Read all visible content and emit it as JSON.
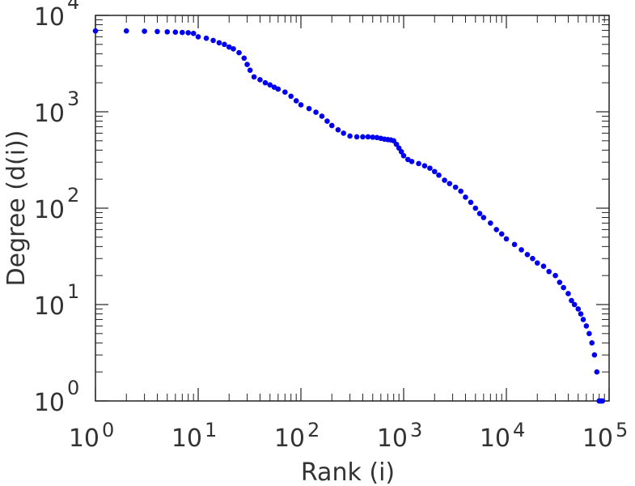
{
  "chart_data": {
    "type": "scatter",
    "xlabel": "Rank (i)",
    "ylabel": "Degree (d(i))",
    "xscale": "log",
    "yscale": "log",
    "xlim": [
      1,
      100000
    ],
    "ylim": [
      1,
      10000
    ],
    "grid": false,
    "marker_color": "#0000ee",
    "x_ticks": [
      {
        "base": "10",
        "exp": "0"
      },
      {
        "base": "10",
        "exp": "1"
      },
      {
        "base": "10",
        "exp": "2"
      },
      {
        "base": "10",
        "exp": "3"
      },
      {
        "base": "10",
        "exp": "4"
      },
      {
        "base": "10",
        "exp": "5"
      }
    ],
    "y_ticks": [
      {
        "base": "10",
        "exp": "0"
      },
      {
        "base": "10",
        "exp": "1"
      },
      {
        "base": "10",
        "exp": "2"
      },
      {
        "base": "10",
        "exp": "3"
      },
      {
        "base": "10",
        "exp": "4"
      }
    ],
    "series": [
      {
        "points": [
          [
            1,
            6900
          ],
          [
            2,
            6900
          ],
          [
            3,
            6850
          ],
          [
            4,
            6800
          ],
          [
            5,
            6750
          ],
          [
            6,
            6700
          ],
          [
            7,
            6650
          ],
          [
            8,
            6600
          ],
          [
            9,
            6500
          ],
          [
            10,
            6000
          ],
          [
            12,
            5800
          ],
          [
            14,
            5500
          ],
          [
            16,
            5200
          ],
          [
            18,
            5000
          ],
          [
            20,
            4700
          ],
          [
            22,
            4500
          ],
          [
            25,
            4100
          ],
          [
            28,
            3600
          ],
          [
            30,
            3100
          ],
          [
            32,
            2700
          ],
          [
            35,
            2300
          ],
          [
            40,
            2150
          ],
          [
            45,
            2000
          ],
          [
            50,
            1900
          ],
          [
            55,
            1800
          ],
          [
            60,
            1720
          ],
          [
            70,
            1600
          ],
          [
            80,
            1450
          ],
          [
            90,
            1300
          ],
          [
            100,
            1180
          ],
          [
            120,
            1080
          ],
          [
            140,
            990
          ],
          [
            160,
            900
          ],
          [
            180,
            800
          ],
          [
            200,
            720
          ],
          [
            230,
            650
          ],
          [
            260,
            600
          ],
          [
            300,
            560
          ],
          [
            350,
            550
          ],
          [
            400,
            550
          ],
          [
            450,
            550
          ],
          [
            500,
            545
          ],
          [
            550,
            540
          ],
          [
            600,
            530
          ],
          [
            650,
            520
          ],
          [
            700,
            515
          ],
          [
            750,
            510
          ],
          [
            800,
            500
          ],
          [
            850,
            460
          ],
          [
            900,
            420
          ],
          [
            950,
            385
          ],
          [
            1000,
            350
          ],
          [
            1100,
            320
          ],
          [
            1200,
            305
          ],
          [
            1400,
            290
          ],
          [
            1600,
            275
          ],
          [
            1800,
            260
          ],
          [
            2000,
            240
          ],
          [
            2200,
            220
          ],
          [
            2500,
            195
          ],
          [
            2800,
            180
          ],
          [
            3200,
            165
          ],
          [
            3600,
            150
          ],
          [
            4000,
            130
          ],
          [
            4500,
            115
          ],
          [
            5000,
            100
          ],
          [
            5500,
            88
          ],
          [
            6000,
            80
          ],
          [
            7000,
            70
          ],
          [
            8000,
            60
          ],
          [
            9000,
            54
          ],
          [
            10000,
            48
          ],
          [
            12000,
            42
          ],
          [
            14000,
            37
          ],
          [
            16000,
            33
          ],
          [
            18000,
            30
          ],
          [
            20000,
            27
          ],
          [
            23000,
            25
          ],
          [
            26000,
            22
          ],
          [
            30000,
            20
          ],
          [
            33000,
            17
          ],
          [
            36000,
            15
          ],
          [
            40000,
            13
          ],
          [
            43000,
            11
          ],
          [
            46000,
            10
          ],
          [
            50000,
            9
          ],
          [
            53000,
            8
          ],
          [
            56000,
            7
          ],
          [
            60000,
            6
          ],
          [
            64000,
            5
          ],
          [
            68000,
            4
          ],
          [
            72000,
            3
          ],
          [
            76000,
            2
          ],
          [
            80000,
            1
          ],
          [
            82000,
            1
          ],
          [
            84000,
            1
          ],
          [
            86000,
            1
          ]
        ]
      }
    ]
  }
}
